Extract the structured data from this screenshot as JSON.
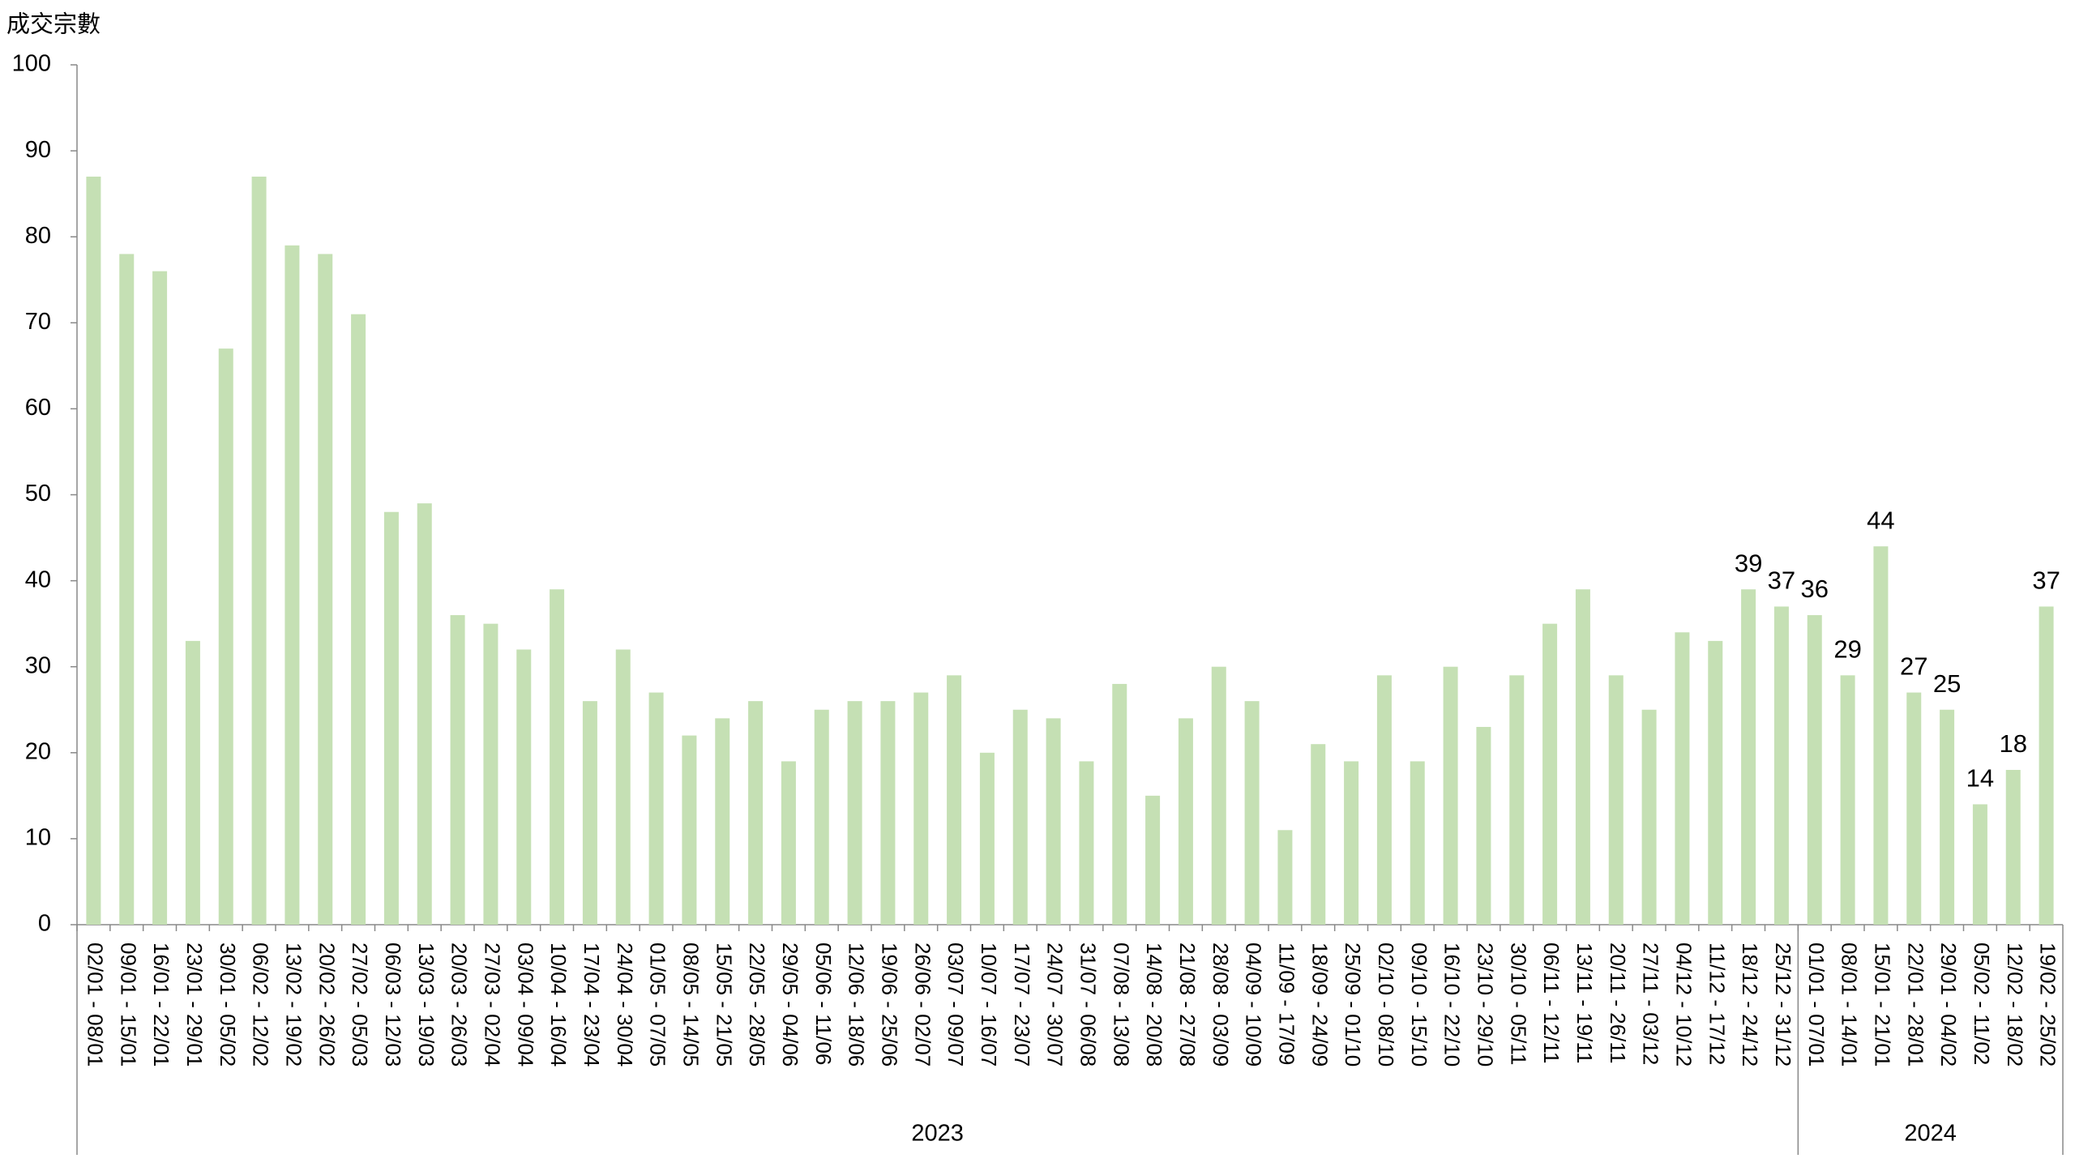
{
  "chart_data": {
    "type": "bar",
    "y_label": "成交宗數",
    "categories": [
      "02/01 - 08/01",
      "09/01 - 15/01",
      "16/01 - 22/01",
      "23/01 - 29/01",
      "30/01 - 05/02",
      "06/02 - 12/02",
      "13/02 - 19/02",
      "20/02 - 26/02",
      "27/02 - 05/03",
      "06/03 - 12/03",
      "13/03 - 19/03",
      "20/03 - 26/03",
      "27/03 - 02/04",
      "03/04 - 09/04",
      "10/04 - 16/04",
      "17/04 - 23/04",
      "24/04 - 30/04",
      "01/05 - 07/05",
      "08/05 - 14/05",
      "15/05 - 21/05",
      "22/05 - 28/05",
      "29/05 - 04/06",
      "05/06 - 11/06",
      "12/06 - 18/06",
      "19/06 - 25/06",
      "26/06 - 02/07",
      "03/07 - 09/07",
      "10/07 - 16/07",
      "17/07 - 23/07",
      "24/07 - 30/07",
      "31/07 - 06/08",
      "07/08 - 13/08",
      "14/08 - 20/08",
      "21/08 - 27/08",
      "28/08 - 03/09",
      "04/09 - 10/09",
      "11/09 - 17/09",
      "18/09 - 24/09",
      "25/09 - 01/10",
      "02/10 - 08/10",
      "09/10 - 15/10",
      "16/10 - 22/10",
      "23/10 - 29/10",
      "30/10 - 05/11",
      "06/11 - 12/11",
      "13/11 - 19/11",
      "20/11 - 26/11",
      "27/11 - 03/12",
      "04/12 - 10/12",
      "11/12 - 17/12",
      "18/12 - 24/12",
      "25/12 - 31/12",
      "01/01 - 07/01",
      "08/01 - 14/01",
      "15/01 - 21/01",
      "22/01 - 28/01",
      "29/01 - 04/02",
      "05/02 - 11/02",
      "12/02 - 18/02",
      "19/02 - 25/02"
    ],
    "values": [
      87,
      78,
      76,
      33,
      67,
      87,
      79,
      78,
      71,
      48,
      49,
      36,
      35,
      32,
      39,
      26,
      32,
      27,
      22,
      24,
      26,
      19,
      25,
      26,
      26,
      27,
      29,
      20,
      25,
      24,
      19,
      28,
      15,
      24,
      30,
      26,
      11,
      21,
      19,
      29,
      19,
      30,
      23,
      29,
      35,
      39,
      29,
      25,
      34,
      33,
      39,
      37,
      36,
      29,
      44,
      27,
      25,
      14,
      18,
      37
    ],
    "value_labels": [
      null,
      null,
      null,
      null,
      null,
      null,
      null,
      null,
      null,
      null,
      null,
      null,
      null,
      null,
      null,
      null,
      null,
      null,
      null,
      null,
      null,
      null,
      null,
      null,
      null,
      null,
      null,
      null,
      null,
      null,
      null,
      null,
      null,
      null,
      null,
      null,
      null,
      null,
      null,
      null,
      null,
      null,
      null,
      null,
      null,
      null,
      null,
      null,
      null,
      null,
      "39",
      "37",
      "36",
      "29",
      "44",
      "27",
      "25",
      "14",
      "18",
      "37"
    ],
    "groups": [
      {
        "label": "2023",
        "count": 52
      },
      {
        "label": "2024",
        "count": 8
      }
    ],
    "color": "#c5e0b4",
    "ylim": [
      0,
      100
    ],
    "yticks": [
      0,
      10,
      20,
      30,
      40,
      50,
      60,
      70,
      80,
      90,
      100
    ],
    "grid": false
  }
}
